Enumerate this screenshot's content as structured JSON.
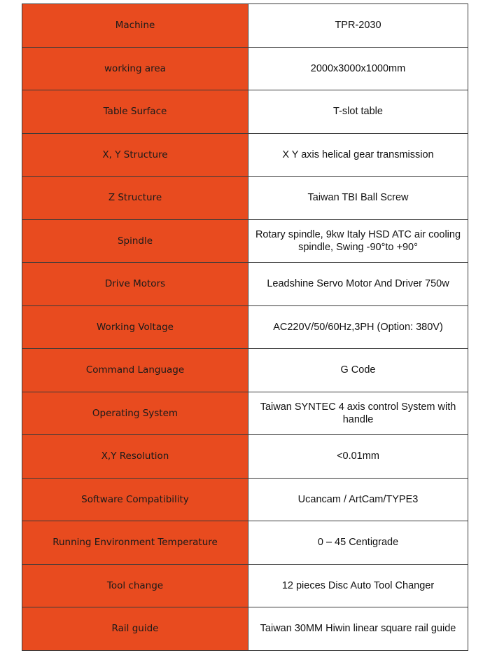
{
  "colors": {
    "label_bg": "#e84b1f",
    "value_bg": "#ffffff",
    "border": "#3a3a3a"
  },
  "rows": [
    {
      "label": "Machine",
      "value": "TPR-2030"
    },
    {
      "label": "working area",
      "value": "2000x3000x1000mm"
    },
    {
      "label": "Table Surface",
      "value": "T-slot table"
    },
    {
      "label": "X, Y Structure",
      "value": "X Y axis helical gear transmission"
    },
    {
      "label": "Z Structure",
      "value": "Taiwan TBI Ball Screw"
    },
    {
      "label": "Spindle",
      "value": "Rotary spindle, 9kw Italy HSD ATC air cooling spindle, Swing -90°to +90°"
    },
    {
      "label": "Drive Motors",
      "value": "Leadshine  Servo Motor And Driver 750w"
    },
    {
      "label": "Working Voltage",
      "value": "AC220V/50/60Hz,3PH (Option: 380V)"
    },
    {
      "label": "Command Language",
      "value": "G Code"
    },
    {
      "label": "Operating System",
      "value": "Taiwan SYNTEC 4 axis control System with handle"
    },
    {
      "label": "X,Y Resolution",
      "value": "<0.01mm"
    },
    {
      "label": "Software Compatibility",
      "value": "Ucancam / ArtCam/TYPE3"
    },
    {
      "label": "Running Environment  Temperature",
      "value": "0 – 45 Centigrade"
    },
    {
      "label": "Tool change",
      "value": "12 pieces Disc Auto Tool Changer"
    },
    {
      "label": "Rail guide",
      "value": "Taiwan 30MM Hiwin linear square rail guide"
    }
  ]
}
